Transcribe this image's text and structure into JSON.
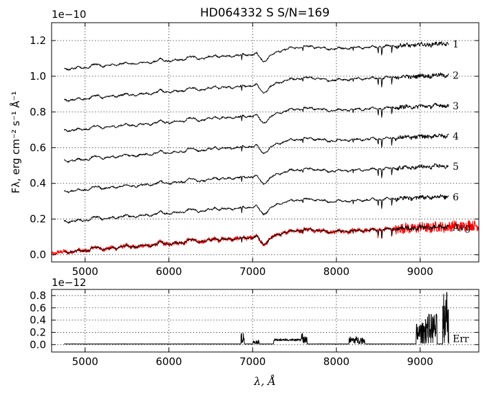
{
  "chart_data": [
    {
      "type": "line",
      "title": "HD064332  S  S/N=169",
      "offset_label": "1e−10",
      "xlim": [
        4600,
        9700
      ],
      "ylim": [
        -0.04,
        1.3
      ],
      "x_ticks": [
        5000,
        6000,
        7000,
        8000,
        9000
      ],
      "x_tick_labels": [
        "5000",
        "6000",
        "7000",
        "8000",
        "9000"
      ],
      "y_ticks": [
        0.0,
        0.2,
        0.4,
        0.6,
        0.8,
        1.0,
        1.2
      ],
      "y_tick_labels": [
        "0.0",
        "0.2",
        "0.4",
        "0.6",
        "0.8",
        "1.0",
        "1.2"
      ],
      "ylabel": "Fλ, erg cm⁻² s⁻¹ Å⁻¹",
      "grid": true,
      "series": [
        {
          "name": "1",
          "color": "#000000",
          "offset": 1.04,
          "x_range": [
            4750,
            9340
          ]
        },
        {
          "name": "2",
          "color": "#000000",
          "offset": 0.865,
          "x_range": [
            4750,
            9340
          ]
        },
        {
          "name": "3",
          "color": "#000000",
          "offset": 0.695,
          "x_range": [
            4750,
            9340
          ]
        },
        {
          "name": "4",
          "color": "#000000",
          "offset": 0.525,
          "x_range": [
            4750,
            9340
          ]
        },
        {
          "name": "5",
          "color": "#000000",
          "offset": 0.355,
          "x_range": [
            4750,
            9340
          ]
        },
        {
          "name": "6",
          "color": "#000000",
          "offset": 0.185,
          "x_range": [
            4750,
            9340
          ]
        },
        {
          "name": "Avg",
          "color": "#ff0000",
          "offset": 0.015,
          "x_range": [
            4600,
            9700
          ]
        },
        {
          "name": "",
          "color": "#000000",
          "offset": 0.015,
          "x_range": [
            4750,
            9340
          ]
        }
      ]
    },
    {
      "type": "line",
      "offset_label": "1e−12",
      "xlim": [
        4600,
        9700
      ],
      "ylim": [
        -0.12,
        0.9
      ],
      "x_ticks": [
        5000,
        6000,
        7000,
        8000,
        9000
      ],
      "x_tick_labels": [
        "5000",
        "6000",
        "7000",
        "8000",
        "9000"
      ],
      "y_ticks": [
        0.0,
        0.2,
        0.4,
        0.6,
        0.8
      ],
      "y_tick_labels": [
        "0.0",
        "0.2",
        "0.4",
        "0.6",
        "0.8"
      ],
      "xlabel": "λ, Å",
      "grid": true,
      "series": [
        {
          "name": "Err",
          "color": "#000000",
          "x_range": [
            4750,
            9340
          ]
        }
      ]
    }
  ]
}
